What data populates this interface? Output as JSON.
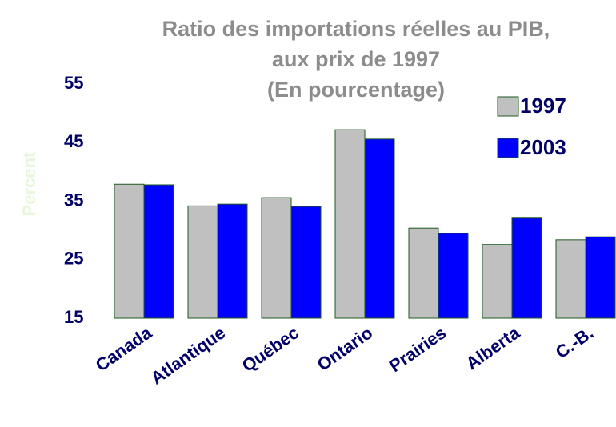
{
  "chart_data": {
    "type": "bar",
    "title": [
      "Ratio des importations réelles au PIB,",
      "aux prix de 1997"
    ],
    "subtitle": "(En pourcentage)",
    "y_label": "Percent",
    "categories": [
      "Canada",
      "Atlantique",
      "Québec",
      "Ontario",
      "Prairies",
      "Alberta",
      "C.-B."
    ],
    "series": [
      {
        "name": "1997",
        "color": "#c0c0c0",
        "values": [
          37.9,
          34.2,
          35.6,
          47.2,
          30.4,
          27.6,
          28.4
        ]
      },
      {
        "name": "2003",
        "color": "#0000ff",
        "values": [
          37.8,
          34.5,
          34.1,
          45.6,
          29.5,
          32.1,
          28.9
        ]
      }
    ],
    "ylim": [
      15,
      55
    ],
    "yticks": [
      15,
      25,
      35,
      45,
      55
    ],
    "grid": false,
    "legend": "top-right"
  }
}
